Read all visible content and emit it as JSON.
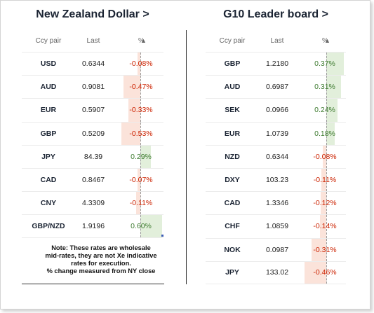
{
  "left_panel": {
    "title": "New Zealand Dollar >",
    "headers": {
      "pair": "Ccy pair",
      "last": "Last",
      "pct": "%",
      "sort_icon": "triangle-up"
    },
    "rows": [
      {
        "pair": "USD",
        "last": "0.6344",
        "pct": "-0.08%",
        "value": -0.08
      },
      {
        "pair": "AUD",
        "last": "0.9081",
        "pct": "-0.47%",
        "value": -0.47
      },
      {
        "pair": "EUR",
        "last": "0.5907",
        "pct": "-0.33%",
        "value": -0.33
      },
      {
        "pair": "GBP",
        "last": "0.5209",
        "pct": "-0.53%",
        "value": -0.53
      },
      {
        "pair": "JPY",
        "last": "84.39",
        "pct": "0.29%",
        "value": 0.29
      },
      {
        "pair": "CAD",
        "last": "0.8467",
        "pct": "-0.07%",
        "value": -0.07
      },
      {
        "pair": "CNY",
        "last": "4.3309",
        "pct": "-0.11%",
        "value": -0.11
      },
      {
        "pair": "GBP/NZD",
        "last": "1.9196",
        "pct": "0.60%",
        "value": 0.6
      }
    ],
    "note": [
      "Note: These rates are wholesale",
      "mid-rates, they are not Xe indicative",
      "rates for execution.",
      "% change measured from NY close"
    ]
  },
  "right_panel": {
    "title": "G10 Leader board >",
    "headers": {
      "pair": "Ccy pair",
      "last": "Last",
      "pct": "%",
      "sort_icon": "triangle-up"
    },
    "rows": [
      {
        "pair": "GBP",
        "last": "1.2180",
        "pct": "0.37%",
        "value": 0.37
      },
      {
        "pair": "AUD",
        "last": "0.6987",
        "pct": "0.31%",
        "value": 0.31
      },
      {
        "pair": "SEK",
        "last": "0.0966",
        "pct": "0.24%",
        "value": 0.24
      },
      {
        "pair": "EUR",
        "last": "1.0739",
        "pct": "0.18%",
        "value": 0.18
      },
      {
        "pair": "NZD",
        "last": "0.6344",
        "pct": "-0.08%",
        "value": -0.08
      },
      {
        "pair": "DXY",
        "last": "103.23",
        "pct": "-0.11%",
        "value": -0.11
      },
      {
        "pair": "CAD",
        "last": "1.3346",
        "pct": "-0.12%",
        "value": -0.12
      },
      {
        "pair": "CHF",
        "last": "1.0859",
        "pct": "-0.14%",
        "value": -0.14
      },
      {
        "pair": "NOK",
        "last": "0.0987",
        "pct": "-0.31%",
        "value": -0.31
      },
      {
        "pair": "JPY",
        "last": "133.02",
        "pct": "-0.46%",
        "value": -0.46
      }
    ]
  },
  "colors": {
    "positive_bar": "#e2efdb",
    "negative_bar": "#fbe3da",
    "positive_text": "#3c7a2e",
    "negative_text": "#cc2200"
  }
}
